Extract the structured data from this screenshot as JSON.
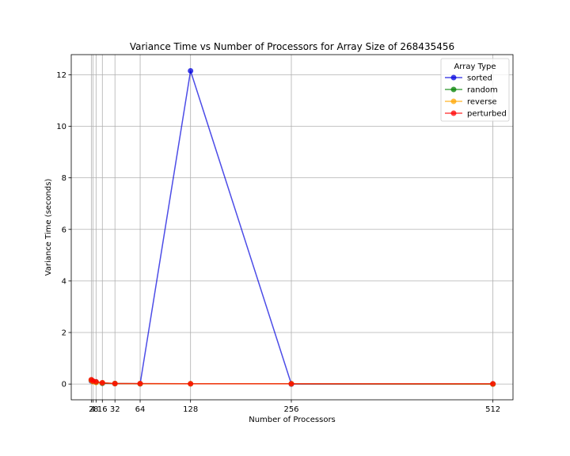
{
  "chart_data": {
    "type": "line",
    "title": "Variance Time vs Number of Processors for Array Size of 268435456",
    "xlabel": "Number of Processors",
    "ylabel": "Variance Time (seconds)",
    "x": [
      2,
      4,
      8,
      16,
      32,
      64,
      128,
      256,
      512
    ],
    "xticks": [
      2,
      4,
      8,
      16,
      32,
      64,
      128,
      256,
      512
    ],
    "xtick_labels": [
      "2",
      "4",
      "8",
      "16",
      "32",
      "64",
      "128",
      "256",
      "512"
    ],
    "yticks": [
      0,
      2,
      4,
      6,
      8,
      10,
      12
    ],
    "xlim": [
      -23.5,
      537.5
    ],
    "ylim": [
      -0.61,
      12.78
    ],
    "grid": true,
    "legend": {
      "title": "Array Type",
      "placement": "top-right"
    },
    "series": [
      {
        "name": "sorted",
        "color": "#0000dd",
        "values": [
          0.12,
          0.1,
          0.08,
          0.04,
          0.02,
          0.01,
          12.15,
          0.0,
          0.0
        ]
      },
      {
        "name": "random",
        "color": "#008000",
        "values": [
          0.15,
          0.11,
          0.07,
          0.03,
          0.02,
          0.01,
          0.01,
          0.01,
          0.0
        ]
      },
      {
        "name": "reverse",
        "color": "#ffa500",
        "values": [
          0.14,
          0.09,
          0.06,
          0.05,
          0.02,
          0.01,
          0.01,
          0.01,
          0.0
        ]
      },
      {
        "name": "perturbed",
        "color": "#ff0000",
        "values": [
          0.17,
          0.12,
          0.09,
          0.05,
          0.02,
          0.02,
          0.01,
          0.01,
          0.01
        ]
      }
    ]
  }
}
